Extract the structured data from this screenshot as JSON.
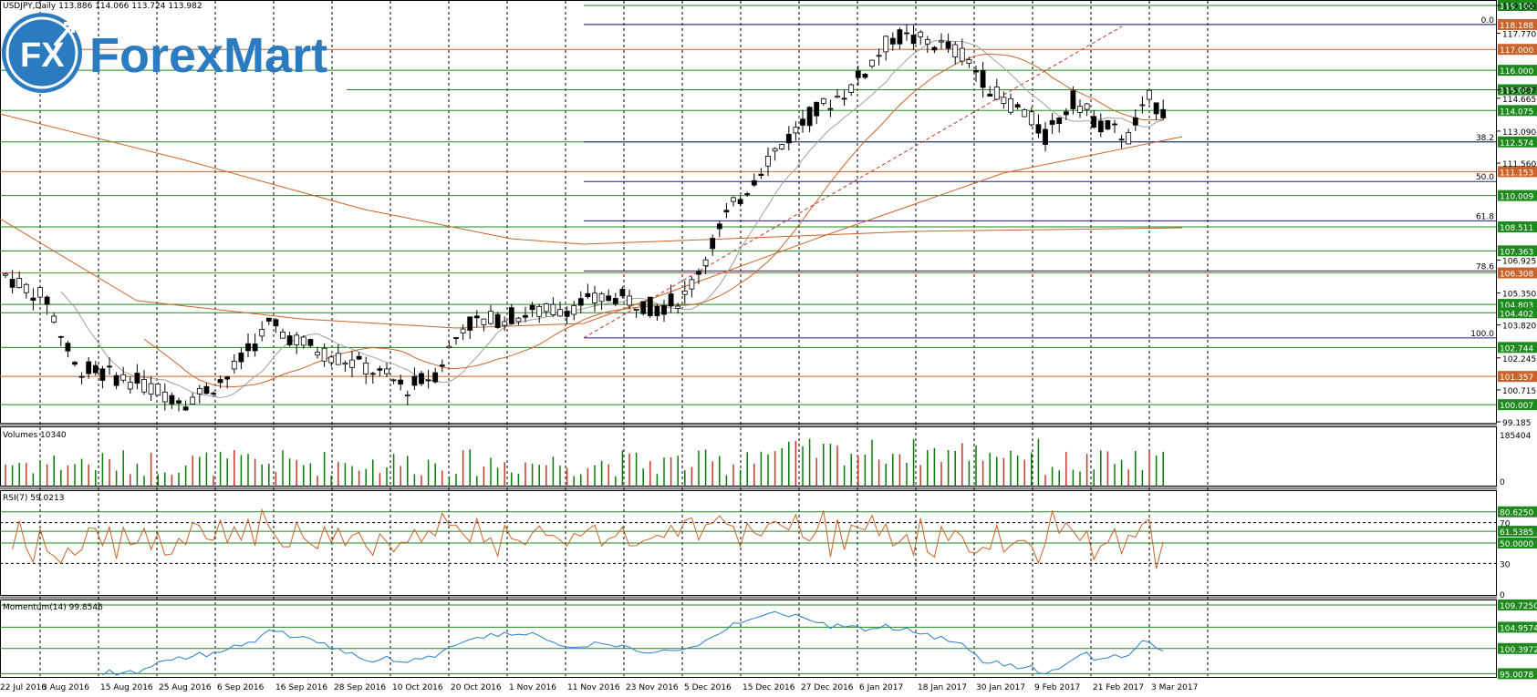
{
  "logo": {
    "fx": "FX",
    "brand": "ForexMart"
  },
  "colors": {
    "bg": "#ffffff",
    "grid": "#000000",
    "green": "#0a7a0a",
    "orange": "#c8642a",
    "navy": "#1c1c8a",
    "red": "#c0392b",
    "blue": "#2a7fc8",
    "gray": "#a0a0a0",
    "logo_blue": "#2b7bc0",
    "label_green": "#1e8a1e"
  },
  "chart_data": [
    {
      "type": "candlestick",
      "title": "USDJPY,Daily  113.886 114.066 113.724 113.982",
      "y_ticks": [
        "119.100",
        "117.770",
        "115.067",
        "114.665",
        "113.090",
        "111.560",
        "106.925",
        "105.350",
        "103.820",
        "102.245",
        "100.715",
        "99.185"
      ],
      "ylim": [
        99.185,
        119.1
      ],
      "x_ticks": [
        "22 Jul 2016",
        "3 Aug 2016",
        "15 Aug 2016",
        "25 Aug 2016",
        "6 Sep 2016",
        "16 Sep 2016",
        "28 Sep 2016",
        "10 Oct 2016",
        "20 Oct 2016",
        "1 Nov 2016",
        "11 Nov 2016",
        "23 Nov 2016",
        "5 Dec 2016",
        "15 Dec 2016",
        "27 Dec 2016",
        "6 Jan 2017",
        "18 Jan 2017",
        "30 Jan 2017",
        "9 Feb 2017",
        "21 Feb 2017",
        "3 Mar 2017"
      ],
      "levels": [
        {
          "value": "119.100",
          "color": "#1e8a1e"
        },
        {
          "value": "118.188",
          "color": "#c8642a"
        },
        {
          "value": "117.000",
          "color": "#c8642a"
        },
        {
          "value": "116.000",
          "color": "#1e8a1e"
        },
        {
          "value": "115.067",
          "color": "#1e8a1e"
        },
        {
          "value": "114.075",
          "color": "#1e8a1e"
        },
        {
          "value": "112.574",
          "color": "#1e8a1e"
        },
        {
          "value": "111.153",
          "color": "#c8642a"
        },
        {
          "value": "110.009",
          "color": "#1e8a1e"
        },
        {
          "value": "108.511",
          "color": "#1e8a1e"
        },
        {
          "value": "107.363",
          "color": "#1e8a1e"
        },
        {
          "value": "106.308",
          "color": "#c8642a"
        },
        {
          "value": "104.803",
          "color": "#1e8a1e"
        },
        {
          "value": "104.402",
          "color": "#1e8a1e"
        },
        {
          "value": "102.744",
          "color": "#1e8a1e"
        },
        {
          "value": "101.357",
          "color": "#c8642a"
        },
        {
          "value": "100.007",
          "color": "#1e8a1e"
        }
      ],
      "fib_labels": [
        "0.0",
        "38.2",
        "50.0",
        "61.8",
        "78.6",
        "100.0"
      ]
    },
    {
      "type": "bar",
      "title": "Volumes 10340",
      "y_ticks": [
        "185404",
        "0"
      ]
    },
    {
      "type": "line",
      "title": "RSI(7) 59.0213",
      "y_ticks": [
        "70",
        "30",
        "0"
      ],
      "levels": [
        {
          "value": "80.6250",
          "color": "#1e8a1e"
        },
        {
          "value": "61.5385",
          "color": "#1e8a1e"
        },
        {
          "value": "50.0000",
          "color": "#1e8a1e"
        }
      ]
    },
    {
      "type": "line",
      "title": "Momentum(14) 99.8546",
      "levels": [
        {
          "value": "109.7250",
          "color": "#1e8a1e"
        },
        {
          "value": "104.9574",
          "color": "#1e8a1e"
        },
        {
          "value": "100.3972",
          "color": "#1e8a1e"
        },
        {
          "value": "95.0078",
          "color": "#1e8a1e"
        }
      ]
    }
  ]
}
